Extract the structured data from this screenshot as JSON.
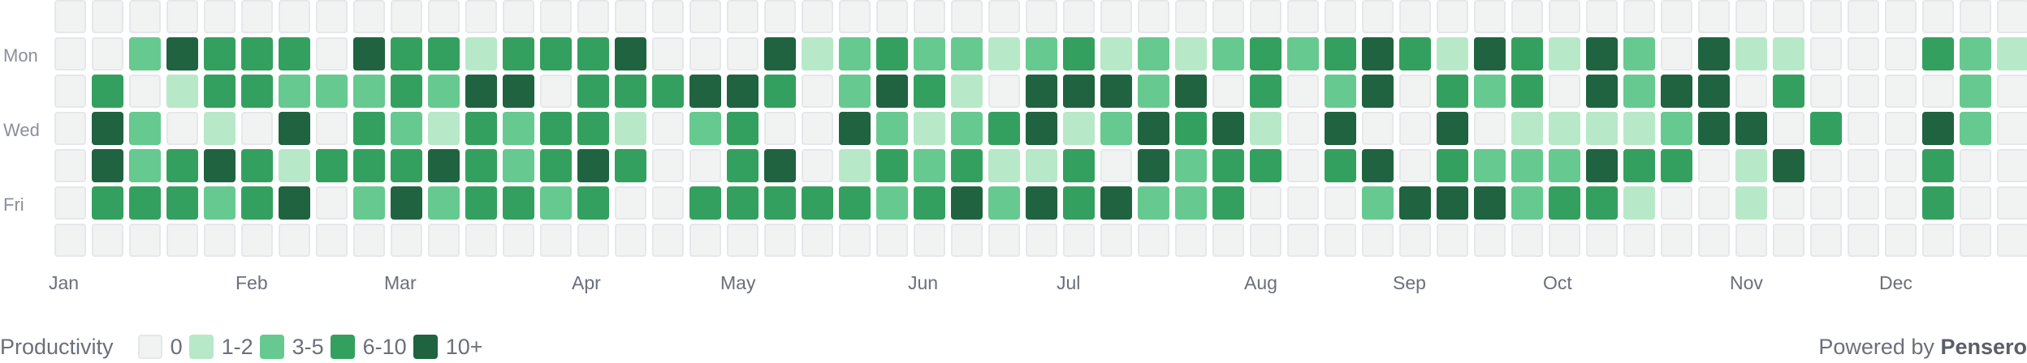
{
  "chart_data": {
    "type": "heatmap",
    "title": "",
    "day_labels": [
      "",
      "Mon",
      "",
      "Wed",
      "",
      "Fri",
      ""
    ],
    "month_labels": [
      "Jan",
      "Feb",
      "Mar",
      "Apr",
      "May",
      "Jun",
      "Jul",
      "Aug",
      "Sep",
      "Oct",
      "Nov",
      "Dec"
    ],
    "legend": {
      "title": "Productivity",
      "levels": [
        "0",
        "1-2",
        "3-5",
        "6-10",
        "10+"
      ],
      "colors": [
        "#f1f3f2",
        "#b7e8c8",
        "#66c990",
        "#34a05f",
        "#206340"
      ]
    },
    "weeks_levels": [
      [
        0,
        0,
        0,
        0,
        0,
        0,
        0
      ],
      [
        0,
        0,
        3,
        4,
        4,
        3,
        0
      ],
      [
        0,
        2,
        0,
        2,
        2,
        3,
        0
      ],
      [
        0,
        4,
        1,
        0,
        3,
        3,
        0
      ],
      [
        0,
        3,
        3,
        1,
        4,
        2,
        0
      ],
      [
        0,
        3,
        3,
        0,
        3,
        3,
        0
      ],
      [
        0,
        3,
        2,
        4,
        1,
        4,
        0
      ],
      [
        0,
        0,
        2,
        0,
        3,
        0,
        0
      ],
      [
        0,
        4,
        2,
        3,
        3,
        2,
        0
      ],
      [
        0,
        3,
        3,
        2,
        3,
        4,
        0
      ],
      [
        0,
        3,
        2,
        1,
        4,
        2,
        0
      ],
      [
        0,
        1,
        4,
        3,
        3,
        3,
        0
      ],
      [
        0,
        3,
        4,
        2,
        2,
        3,
        0
      ],
      [
        0,
        3,
        0,
        3,
        3,
        2,
        0
      ],
      [
        0,
        3,
        3,
        3,
        4,
        3,
        0
      ],
      [
        0,
        4,
        3,
        1,
        3,
        0,
        0
      ],
      [
        0,
        0,
        3,
        0,
        0,
        0,
        0
      ],
      [
        0,
        0,
        4,
        2,
        0,
        3,
        0
      ],
      [
        0,
        0,
        4,
        3,
        3,
        3,
        0
      ],
      [
        0,
        4,
        3,
        0,
        4,
        3,
        0
      ],
      [
        0,
        1,
        0,
        0,
        0,
        3,
        0
      ],
      [
        0,
        2,
        2,
        4,
        1,
        3,
        0
      ],
      [
        0,
        3,
        4,
        2,
        3,
        2,
        0
      ],
      [
        0,
        2,
        3,
        1,
        2,
        3,
        0
      ],
      [
        0,
        2,
        1,
        2,
        3,
        4,
        0
      ],
      [
        0,
        1,
        0,
        3,
        1,
        2,
        0
      ],
      [
        0,
        2,
        4,
        4,
        1,
        4,
        0
      ],
      [
        0,
        3,
        4,
        1,
        3,
        3,
        0
      ],
      [
        0,
        1,
        4,
        2,
        0,
        4,
        0
      ],
      [
        0,
        2,
        2,
        4,
        4,
        2,
        0
      ],
      [
        0,
        1,
        4,
        3,
        2,
        2,
        0
      ],
      [
        0,
        2,
        0,
        4,
        3,
        3,
        0
      ],
      [
        0,
        3,
        3,
        1,
        3,
        0,
        0
      ],
      [
        0,
        2,
        0,
        0,
        0,
        0,
        0
      ],
      [
        0,
        3,
        2,
        4,
        3,
        0,
        0
      ],
      [
        0,
        4,
        4,
        0,
        4,
        2,
        0
      ],
      [
        0,
        3,
        0,
        0,
        0,
        4,
        0
      ],
      [
        0,
        1,
        3,
        4,
        3,
        4,
        0
      ],
      [
        0,
        4,
        2,
        0,
        2,
        4,
        0
      ],
      [
        0,
        3,
        3,
        1,
        2,
        2,
        0
      ],
      [
        0,
        1,
        0,
        1,
        2,
        3,
        0
      ],
      [
        0,
        4,
        4,
        1,
        4,
        3,
        0
      ],
      [
        0,
        2,
        2,
        1,
        3,
        1,
        0
      ],
      [
        0,
        0,
        4,
        2,
        3,
        0,
        0
      ],
      [
        0,
        4,
        4,
        4,
        0,
        0,
        0
      ],
      [
        0,
        1,
        0,
        4,
        1,
        1,
        0
      ],
      [
        0,
        1,
        3,
        0,
        4,
        0,
        0
      ],
      [
        0,
        0,
        0,
        3,
        0,
        0,
        0
      ],
      [
        0,
        0,
        0,
        0,
        0,
        0,
        0
      ],
      [
        0,
        0,
        0,
        0,
        0,
        0,
        0
      ],
      [
        0,
        3,
        0,
        4,
        3,
        3,
        0
      ],
      [
        0,
        2,
        2,
        2,
        0,
        0,
        0
      ],
      [
        0,
        1,
        0,
        0,
        0,
        0,
        0
      ]
    ]
  },
  "footer": {
    "powered_prefix": "Powered by",
    "brand": "Pensero"
  }
}
